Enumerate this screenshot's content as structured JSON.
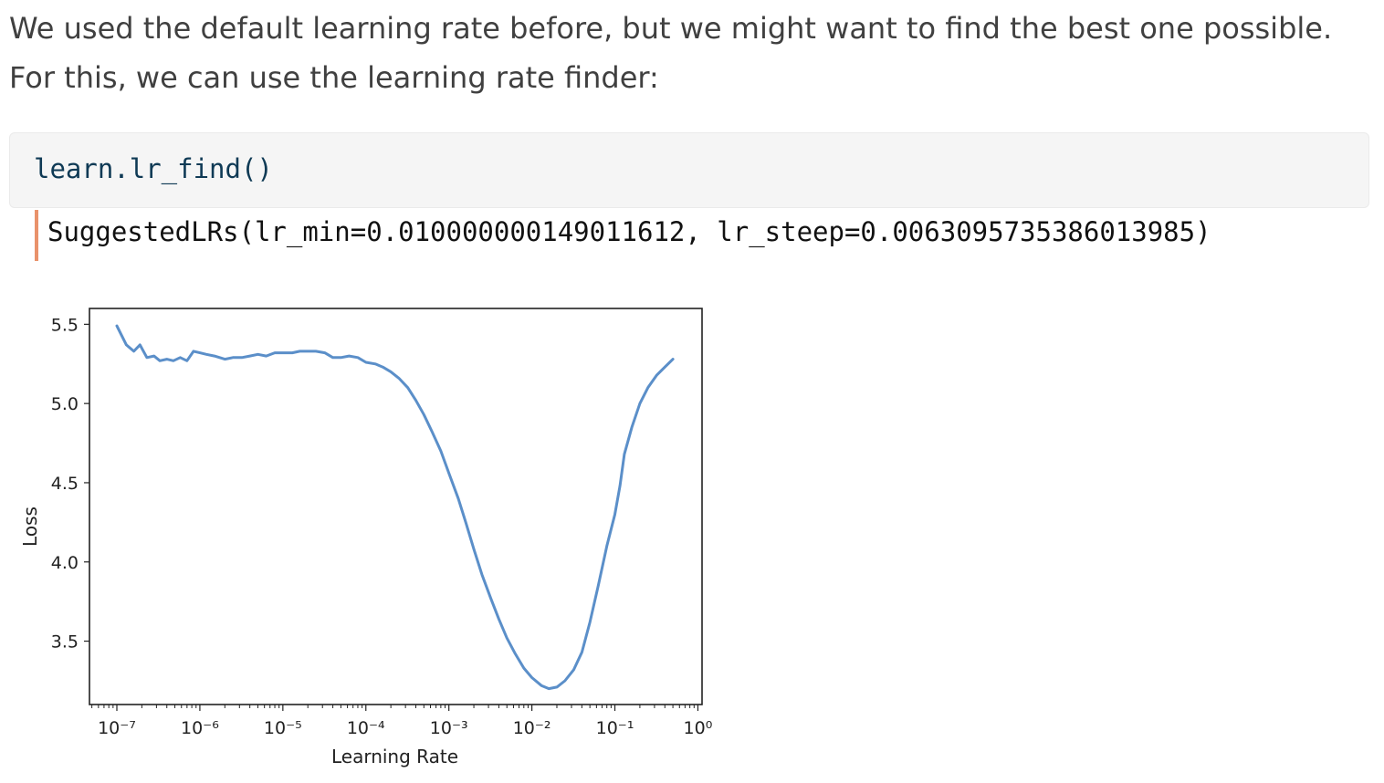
{
  "prose": {
    "text": "We used the default learning rate before, but we might want to find the best one possible. For this, we can use the learning rate finder:"
  },
  "code": {
    "input": "learn.lr_find()",
    "output": "SuggestedLRs(lr_min=0.010000000149011612, lr_steep=0.0063095735386013985)"
  },
  "colors": {
    "accent_bar": "#e9926b",
    "line": "#5b8fc9",
    "code_bg": "#f5f5f5"
  },
  "chart_data": {
    "type": "line",
    "title": "",
    "xlabel": "Learning Rate",
    "ylabel": "Loss",
    "xscale": "log",
    "xlim": [
      1e-07,
      1
    ],
    "ylim": [
      3.1,
      5.6
    ],
    "grid": false,
    "x_ticks": [
      {
        "label": "10⁻⁷",
        "value": 1e-07
      },
      {
        "label": "10⁻⁶",
        "value": 1e-06
      },
      {
        "label": "10⁻⁵",
        "value": 1e-05
      },
      {
        "label": "10⁻⁴",
        "value": 0.0001
      },
      {
        "label": "10⁻³",
        "value": 0.001
      },
      {
        "label": "10⁻²",
        "value": 0.01
      },
      {
        "label": "10⁻¹",
        "value": 0.1
      },
      {
        "label": "10⁰",
        "value": 1
      }
    ],
    "y_ticks": [
      {
        "label": "3.5",
        "value": 3.5
      },
      {
        "label": "4.0",
        "value": 4.0
      },
      {
        "label": "4.5",
        "value": 4.5
      },
      {
        "label": "5.0",
        "value": 5.0
      },
      {
        "label": "5.5",
        "value": 5.5
      }
    ],
    "series": [
      {
        "x": [
          1e-07,
          1.3e-07,
          1.6e-07,
          1.9e-07,
          2.3e-07,
          2.8e-07,
          3.3e-07,
          4e-07,
          4.8e-07,
          5.8e-07,
          7e-07,
          8.4e-07,
          1e-06,
          1.2e-06,
          1.5e-06,
          2e-06,
          2.5e-06,
          3.2e-06,
          4e-06,
          5e-06,
          6.3e-06,
          8e-06,
          1e-05,
          1.3e-05,
          1.6e-05,
          2e-05,
          2.5e-05,
          3.2e-05,
          4e-05,
          5e-05,
          6.3e-05,
          8e-05,
          0.0001,
          0.00013,
          0.00016,
          0.0002,
          0.00025,
          0.00032,
          0.0004,
          0.0005,
          0.00063,
          0.0008,
          0.001,
          0.0013,
          0.0016,
          0.002,
          0.0025,
          0.0032,
          0.004,
          0.005,
          0.0063,
          0.008,
          0.01,
          0.013,
          0.016,
          0.02,
          0.025,
          0.032,
          0.04,
          0.05,
          0.063,
          0.08,
          0.1,
          0.115,
          0.13,
          0.16,
          0.2,
          0.25,
          0.32,
          0.4,
          0.5
        ],
        "y": [
          5.49,
          5.37,
          5.33,
          5.37,
          5.29,
          5.3,
          5.27,
          5.28,
          5.27,
          5.29,
          5.27,
          5.33,
          5.32,
          5.31,
          5.3,
          5.28,
          5.29,
          5.29,
          5.3,
          5.31,
          5.3,
          5.32,
          5.32,
          5.32,
          5.33,
          5.33,
          5.33,
          5.32,
          5.29,
          5.29,
          5.3,
          5.29,
          5.26,
          5.25,
          5.23,
          5.2,
          5.16,
          5.1,
          5.02,
          4.93,
          4.82,
          4.7,
          4.56,
          4.4,
          4.25,
          4.08,
          3.92,
          3.77,
          3.64,
          3.52,
          3.42,
          3.33,
          3.27,
          3.22,
          3.2,
          3.21,
          3.25,
          3.32,
          3.43,
          3.62,
          3.85,
          4.1,
          4.3,
          4.48,
          4.68,
          4.85,
          5.0,
          5.1,
          5.18,
          5.23,
          5.28
        ]
      }
    ]
  }
}
